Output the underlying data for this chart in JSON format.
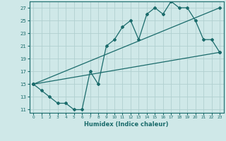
{
  "xlabel": "Humidex (Indice chaleur)",
  "bg_color": "#cfe8e8",
  "grid_color": "#b0d0d0",
  "line_color": "#1a6b6b",
  "marker_color": "#1a6b6b",
  "xlim": [
    -0.5,
    23.5
  ],
  "ylim": [
    10.5,
    28
  ],
  "xticks": [
    0,
    1,
    2,
    3,
    4,
    5,
    6,
    7,
    8,
    9,
    10,
    11,
    12,
    13,
    14,
    15,
    16,
    17,
    18,
    19,
    20,
    21,
    22,
    23
  ],
  "yticks": [
    11,
    13,
    15,
    17,
    19,
    21,
    23,
    25,
    27
  ],
  "line1_x": [
    0,
    1,
    2,
    3,
    4,
    5,
    6,
    7,
    8,
    9,
    10,
    11,
    12,
    13,
    14,
    15,
    16,
    17,
    18,
    19,
    20,
    21,
    22,
    23
  ],
  "line1_y": [
    15,
    14,
    13,
    12,
    12,
    11,
    11,
    17,
    15,
    21,
    22,
    24,
    25,
    22,
    26,
    27,
    26,
    28,
    27,
    27,
    25,
    22,
    22,
    20
  ],
  "line2_x": [
    0,
    23
  ],
  "line2_y": [
    15,
    20
  ],
  "line3_x": [
    0,
    23
  ],
  "line3_y": [
    15,
    27
  ]
}
